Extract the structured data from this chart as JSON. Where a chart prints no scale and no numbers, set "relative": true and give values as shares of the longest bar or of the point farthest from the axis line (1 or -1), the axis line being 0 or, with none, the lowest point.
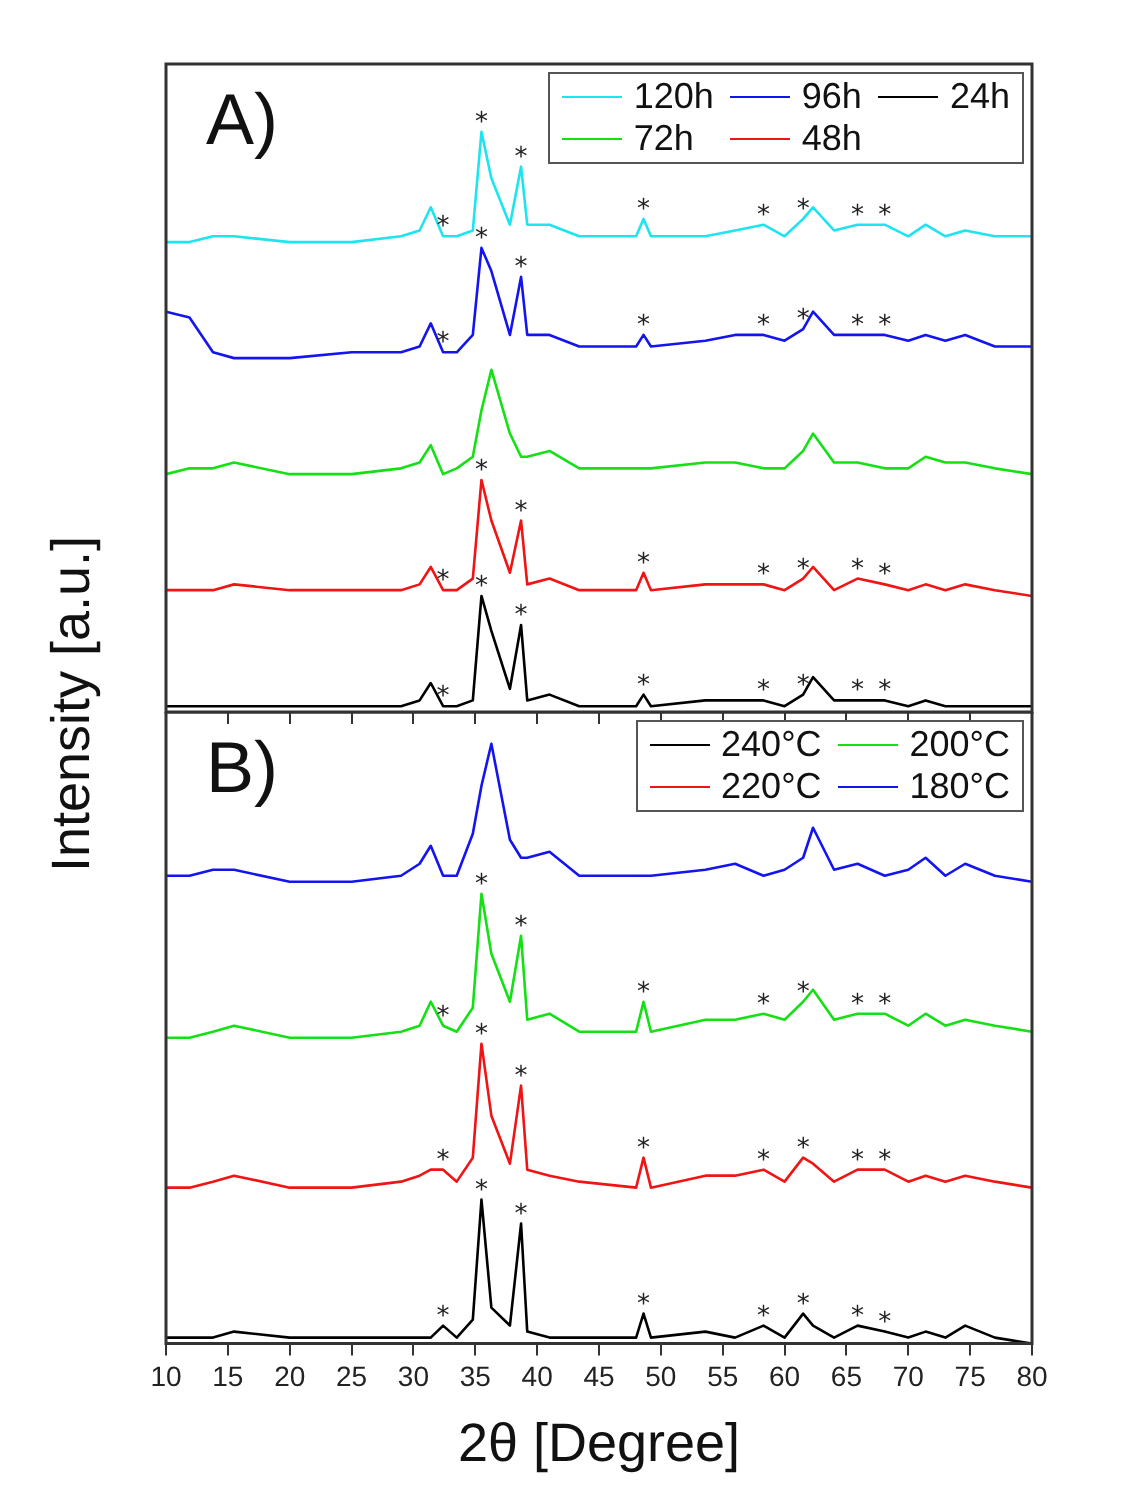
{
  "chart_data": [
    {
      "type": "line",
      "title": "A)",
      "ylabel": "Intensity [a.u.]",
      "relative": true,
      "legend": "top right",
      "tick_labels": false,
      "marker": "none",
      "xlim": [
        10,
        80
      ],
      "xticks": [
        10,
        15,
        20,
        25,
        30,
        35,
        40,
        45,
        50,
        55,
        60,
        65,
        70,
        75,
        80
      ],
      "x": [
        10,
        11.9,
        13.8,
        15.5,
        20,
        25,
        29,
        30.5,
        31.4,
        32.4,
        33.5,
        34.8,
        35.5,
        36.3,
        37.8,
        38.7,
        39.2,
        41,
        43.4,
        48,
        48.6,
        49.2,
        53.6,
        56,
        58.3,
        60,
        61.5,
        62.3,
        64,
        65.9,
        68.1,
        70,
        71.4,
        73,
        74.6,
        77,
        80
      ],
      "series": [
        {
          "name": "120h",
          "color": "#1ee4f0",
          "values": [
            0.81,
            0.81,
            0.82,
            0.82,
            0.81,
            0.81,
            0.82,
            0.83,
            0.87,
            0.82,
            0.82,
            0.83,
            1.0,
            0.92,
            0.84,
            0.94,
            0.84,
            0.84,
            0.82,
            0.82,
            0.85,
            0.82,
            0.82,
            0.83,
            0.84,
            0.82,
            0.85,
            0.87,
            0.83,
            0.84,
            0.84,
            0.82,
            0.84,
            0.82,
            0.83,
            0.82,
            0.82
          ]
        },
        {
          "name": "96h",
          "color": "#1414f0",
          "values": [
            0.69,
            0.68,
            0.62,
            0.61,
            0.61,
            0.62,
            0.62,
            0.63,
            0.67,
            0.62,
            0.62,
            0.65,
            0.8,
            0.76,
            0.65,
            0.75,
            0.65,
            0.65,
            0.63,
            0.63,
            0.65,
            0.63,
            0.64,
            0.65,
            0.65,
            0.64,
            0.66,
            0.69,
            0.65,
            0.65,
            0.65,
            0.64,
            0.65,
            0.64,
            0.65,
            0.63,
            0.63
          ]
        },
        {
          "name": "24h",
          "color": "#000000",
          "values": [
            0.01,
            0.01,
            0.01,
            0.01,
            0.01,
            0.01,
            0.01,
            0.02,
            0.05,
            0.01,
            0.01,
            0.02,
            0.2,
            0.14,
            0.04,
            0.15,
            0.02,
            0.03,
            0.01,
            0.01,
            0.03,
            0.01,
            0.02,
            0.02,
            0.02,
            0.01,
            0.03,
            0.06,
            0.02,
            0.02,
            0.02,
            0.01,
            0.02,
            0.01,
            0.01,
            0.01,
            0.01
          ]
        },
        {
          "name": "72h",
          "color": "#14e014",
          "values": [
            0.41,
            0.42,
            0.42,
            0.43,
            0.41,
            0.41,
            0.42,
            0.43,
            0.46,
            0.41,
            0.42,
            0.44,
            0.52,
            0.59,
            0.48,
            0.44,
            0.44,
            0.45,
            0.42,
            0.42,
            0.42,
            0.42,
            0.43,
            0.43,
            0.42,
            0.42,
            0.45,
            0.48,
            0.43,
            0.43,
            0.42,
            0.42,
            0.44,
            0.43,
            0.43,
            0.42,
            0.41
          ]
        },
        {
          "name": "48h",
          "color": "#f01414",
          "values": [
            0.21,
            0.21,
            0.21,
            0.22,
            0.21,
            0.21,
            0.21,
            0.22,
            0.25,
            0.21,
            0.21,
            0.23,
            0.4,
            0.33,
            0.24,
            0.33,
            0.22,
            0.23,
            0.21,
            0.21,
            0.24,
            0.21,
            0.22,
            0.22,
            0.22,
            0.21,
            0.23,
            0.25,
            0.21,
            0.23,
            0.22,
            0.21,
            0.22,
            0.21,
            0.22,
            0.21,
            0.2
          ]
        }
      ],
      "annotations": [
        {
          "text": "*",
          "x": 32.4,
          "y": 0.82
        },
        {
          "text": "*",
          "x": 35.5,
          "y": 1.0
        },
        {
          "text": "*",
          "x": 38.7,
          "y": 0.94
        },
        {
          "text": "*",
          "x": 48.6,
          "y": 0.85
        },
        {
          "text": "*",
          "x": 58.3,
          "y": 0.84
        },
        {
          "text": "*",
          "x": 61.5,
          "y": 0.85
        },
        {
          "text": "*",
          "x": 65.9,
          "y": 0.84
        },
        {
          "text": "*",
          "x": 68.1,
          "y": 0.84
        },
        {
          "text": "*",
          "x": 32.4,
          "y": 0.62
        },
        {
          "text": "*",
          "x": 35.5,
          "y": 0.8
        },
        {
          "text": "*",
          "x": 38.7,
          "y": 0.75
        },
        {
          "text": "*",
          "x": 48.6,
          "y": 0.65
        },
        {
          "text": "*",
          "x": 58.3,
          "y": 0.65
        },
        {
          "text": "*",
          "x": 61.5,
          "y": 0.66
        },
        {
          "text": "*",
          "x": 65.9,
          "y": 0.65
        },
        {
          "text": "*",
          "x": 68.1,
          "y": 0.65
        },
        {
          "text": "*",
          "x": 32.4,
          "y": 0.21
        },
        {
          "text": "*",
          "x": 35.5,
          "y": 0.4
        },
        {
          "text": "*",
          "x": 38.7,
          "y": 0.33
        },
        {
          "text": "*",
          "x": 48.6,
          "y": 0.24
        },
        {
          "text": "*",
          "x": 58.3,
          "y": 0.22
        },
        {
          "text": "*",
          "x": 61.5,
          "y": 0.23
        },
        {
          "text": "*",
          "x": 65.9,
          "y": 0.23
        },
        {
          "text": "*",
          "x": 68.1,
          "y": 0.22
        },
        {
          "text": "*",
          "x": 32.4,
          "y": 0.01
        },
        {
          "text": "*",
          "x": 35.5,
          "y": 0.2
        },
        {
          "text": "*",
          "x": 38.7,
          "y": 0.15
        },
        {
          "text": "*",
          "x": 48.6,
          "y": 0.03
        },
        {
          "text": "*",
          "x": 58.3,
          "y": 0.02
        },
        {
          "text": "*",
          "x": 61.5,
          "y": 0.03
        },
        {
          "text": "*",
          "x": 65.9,
          "y": 0.02
        },
        {
          "text": "*",
          "x": 68.1,
          "y": 0.02
        }
      ]
    },
    {
      "type": "line",
      "title": "B)",
      "xlabel": "2θ [Degree]",
      "relative": true,
      "legend": "top right",
      "tick_labels": "x",
      "marker": "none",
      "xlim": [
        10,
        80
      ],
      "xticks": [
        10,
        15,
        20,
        25,
        30,
        35,
        40,
        45,
        50,
        55,
        60,
        65,
        70,
        75,
        80
      ],
      "x": [
        10,
        11.9,
        13.8,
        15.5,
        20,
        25,
        29,
        30.5,
        31.4,
        32.4,
        33.5,
        34.8,
        35.5,
        36.3,
        37.8,
        38.7,
        39.2,
        41,
        43.4,
        48,
        48.6,
        49.2,
        53.6,
        56,
        58.3,
        60,
        61.5,
        62.3,
        64,
        65.9,
        68.1,
        70,
        71.4,
        73,
        74.6,
        77,
        80
      ],
      "series": [
        {
          "name": "240°C",
          "color": "#000000",
          "values": [
            0.01,
            0.01,
            0.01,
            0.02,
            0.01,
            0.01,
            0.01,
            0.01,
            0.01,
            0.03,
            0.01,
            0.04,
            0.24,
            0.06,
            0.03,
            0.2,
            0.02,
            0.01,
            0.01,
            0.01,
            0.05,
            0.01,
            0.02,
            0.01,
            0.03,
            0.01,
            0.05,
            0.03,
            0.01,
            0.03,
            0.02,
            0.01,
            0.02,
            0.01,
            0.03,
            0.01,
            0
          ]
        },
        {
          "name": "200°C",
          "color": "#14e014",
          "values": [
            0.51,
            0.51,
            0.52,
            0.53,
            0.51,
            0.51,
            0.52,
            0.53,
            0.57,
            0.53,
            0.52,
            0.56,
            0.75,
            0.65,
            0.57,
            0.68,
            0.54,
            0.55,
            0.52,
            0.52,
            0.57,
            0.52,
            0.54,
            0.54,
            0.55,
            0.54,
            0.57,
            0.59,
            0.54,
            0.55,
            0.55,
            0.53,
            0.55,
            0.53,
            0.54,
            0.53,
            0.52
          ]
        },
        {
          "name": "220°C",
          "color": "#f01414",
          "values": [
            0.26,
            0.26,
            0.27,
            0.28,
            0.26,
            0.26,
            0.27,
            0.28,
            0.29,
            0.29,
            0.27,
            0.31,
            0.5,
            0.38,
            0.3,
            0.43,
            0.29,
            0.28,
            0.27,
            0.26,
            0.31,
            0.26,
            0.28,
            0.28,
            0.29,
            0.27,
            0.31,
            0.3,
            0.27,
            0.29,
            0.29,
            0.27,
            0.28,
            0.27,
            0.28,
            0.27,
            0.26
          ]
        },
        {
          "name": "180°C",
          "color": "#1414f0",
          "values": [
            0.78,
            0.78,
            0.79,
            0.79,
            0.77,
            0.77,
            0.78,
            0.8,
            0.83,
            0.78,
            0.78,
            0.85,
            0.93,
            1.0,
            0.84,
            0.81,
            0.81,
            0.82,
            0.78,
            0.78,
            0.78,
            0.78,
            0.79,
            0.8,
            0.78,
            0.79,
            0.81,
            0.86,
            0.79,
            0.8,
            0.78,
            0.79,
            0.81,
            0.78,
            0.8,
            0.78,
            0.77
          ]
        }
      ],
      "annotations": [
        {
          "text": "*",
          "x": 32.4,
          "y": 0.53
        },
        {
          "text": "*",
          "x": 35.5,
          "y": 0.75
        },
        {
          "text": "*",
          "x": 38.7,
          "y": 0.68
        },
        {
          "text": "*",
          "x": 48.6,
          "y": 0.57
        },
        {
          "text": "*",
          "x": 58.3,
          "y": 0.55
        },
        {
          "text": "*",
          "x": 61.5,
          "y": 0.57
        },
        {
          "text": "*",
          "x": 65.9,
          "y": 0.55
        },
        {
          "text": "*",
          "x": 68.1,
          "y": 0.55
        },
        {
          "text": "*",
          "x": 32.4,
          "y": 0.29
        },
        {
          "text": "*",
          "x": 35.5,
          "y": 0.5
        },
        {
          "text": "*",
          "x": 38.7,
          "y": 0.43
        },
        {
          "text": "*",
          "x": 48.6,
          "y": 0.31
        },
        {
          "text": "*",
          "x": 58.3,
          "y": 0.29
        },
        {
          "text": "*",
          "x": 61.5,
          "y": 0.31
        },
        {
          "text": "*",
          "x": 65.9,
          "y": 0.29
        },
        {
          "text": "*",
          "x": 68.1,
          "y": 0.29
        },
        {
          "text": "*",
          "x": 32.4,
          "y": 0.03
        },
        {
          "text": "*",
          "x": 35.5,
          "y": 0.24
        },
        {
          "text": "*",
          "x": 38.7,
          "y": 0.2
        },
        {
          "text": "*",
          "x": 48.6,
          "y": 0.05
        },
        {
          "text": "*",
          "x": 58.3,
          "y": 0.03
        },
        {
          "text": "*",
          "x": 61.5,
          "y": 0.05
        },
        {
          "text": "*",
          "x": 65.9,
          "y": 0.03
        },
        {
          "text": "*",
          "x": 68.1,
          "y": 0.02
        }
      ]
    }
  ]
}
